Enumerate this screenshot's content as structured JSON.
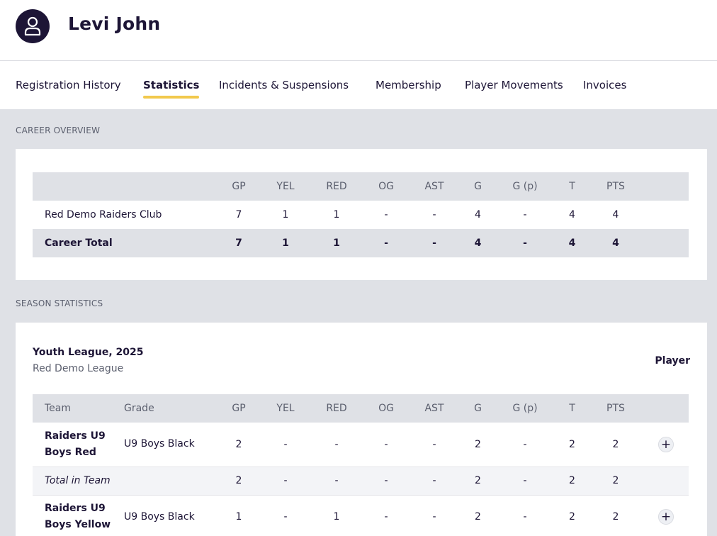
{
  "player": {
    "name": "Levi John",
    "avatar_icon": "user-icon"
  },
  "tabs": [
    {
      "label": "Registration History",
      "active": false
    },
    {
      "label": "Statistics",
      "active": true
    },
    {
      "label": "Incidents & Suspensions",
      "active": false
    },
    {
      "label": "Membership",
      "active": false
    },
    {
      "label": "Player Movements",
      "active": false
    },
    {
      "label": "Invoices",
      "active": false
    }
  ],
  "career": {
    "section_label": "CAREER OVERVIEW",
    "columns": [
      "GP",
      "YEL",
      "RED",
      "OG",
      "AST",
      "G",
      "G (p)",
      "T",
      "PTS"
    ],
    "rows": [
      {
        "name": "Red Demo Raiders Club",
        "values": [
          "7",
          "1",
          "1",
          "-",
          "-",
          "4",
          "-",
          "4",
          "4"
        ]
      }
    ],
    "total": {
      "name": "Career Total",
      "values": [
        "7",
        "1",
        "1",
        "-",
        "-",
        "4",
        "-",
        "4",
        "4"
      ]
    }
  },
  "season": {
    "section_label": "SEASON STATISTICS",
    "league_title": "Youth League, 2025",
    "league_sub": "Red Demo League",
    "role": "Player",
    "columns": [
      "Team",
      "Grade",
      "GP",
      "YEL",
      "RED",
      "OG",
      "AST",
      "G",
      "G (p)",
      "T",
      "PTS"
    ],
    "rows": [
      {
        "team": "Raiders U9 Boys Red",
        "grade": "U9 Boys Black",
        "values": [
          "2",
          "-",
          "-",
          "-",
          "-",
          "2",
          "-",
          "2",
          "2"
        ]
      },
      {
        "team": "Raiders U9 Boys Yellow",
        "grade": "U9 Boys Black",
        "values": [
          "1",
          "-",
          "1",
          "-",
          "-",
          "2",
          "-",
          "2",
          "2"
        ]
      }
    ],
    "subtotal": {
      "label": "Total in Team",
      "values": [
        "2",
        "-",
        "-",
        "-",
        "-",
        "2",
        "-",
        "2",
        "2"
      ]
    },
    "expand_symbol": "+"
  },
  "colors": {
    "navy": "#1d1536",
    "accent": "#f2c94c",
    "page_bg": "#dfe1e6"
  }
}
